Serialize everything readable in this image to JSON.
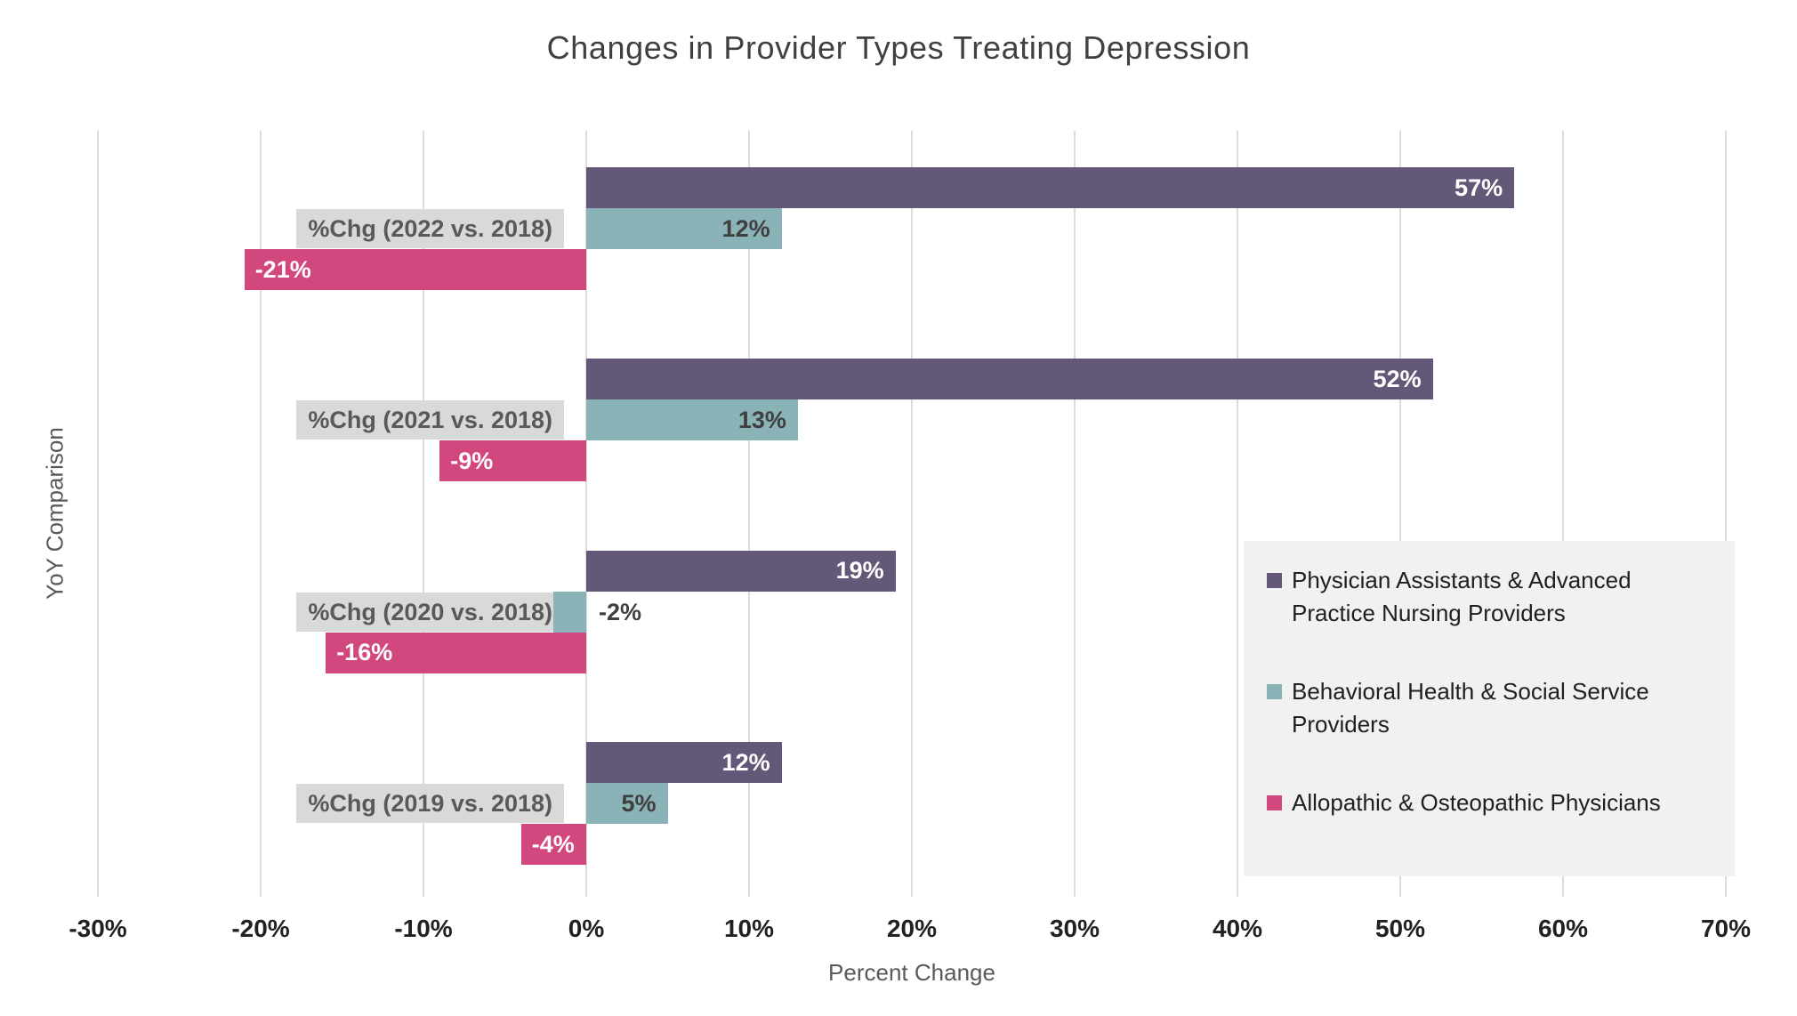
{
  "chart_data": {
    "type": "bar",
    "orientation": "horizontal",
    "title": "Changes in Provider Types Treating Depression",
    "xlabel": "Percent Change",
    "ylabel": "YoY Comparison",
    "xlim": [
      -30,
      70
    ],
    "grid": true,
    "legend_position": "inside-right",
    "x_ticks": [
      {
        "value": -30,
        "label": "-30%"
      },
      {
        "value": -20,
        "label": "-20%"
      },
      {
        "value": -10,
        "label": "-10%"
      },
      {
        "value": 0,
        "label": "0%"
      },
      {
        "value": 10,
        "label": "10%"
      },
      {
        "value": 20,
        "label": "20%"
      },
      {
        "value": 30,
        "label": "30%"
      },
      {
        "value": 40,
        "label": "40%"
      },
      {
        "value": 50,
        "label": "50%"
      },
      {
        "value": 60,
        "label": "60%"
      },
      {
        "value": 70,
        "label": "70%"
      }
    ],
    "categories": [
      {
        "key": "2022",
        "label": "%Chg (2022 vs. 2018)"
      },
      {
        "key": "2021",
        "label": "%Chg (2021 vs. 2018)"
      },
      {
        "key": "2020",
        "label": "%Chg (2020 vs. 2018)"
      },
      {
        "key": "2019",
        "label": "%Chg (2019 vs. 2018)"
      }
    ],
    "series": [
      {
        "key": "physician-assistants-apn",
        "name": "Physician Assistants & Advanced Practice Nursing Providers",
        "color": "#645878",
        "label_color": "#FFFFFF",
        "values": [
          57,
          52,
          19,
          12
        ],
        "labels": [
          "57%",
          "52%",
          "19%",
          "12%"
        ]
      },
      {
        "key": "behavioral-health-ss",
        "name": "Behavioral Health & Social Service Providers",
        "color": "#8AB3B7",
        "label_color": "#3F3F3F",
        "values": [
          12,
          13,
          -2,
          5
        ],
        "labels": [
          "12%",
          "13%",
          "-2%",
          "5%"
        ]
      },
      {
        "key": "allopathic-osteopathic",
        "name": "Allopathic & Osteopathic Physicians",
        "color": "#D2477D",
        "label_color": "#FFFFFF",
        "values": [
          -21,
          -9,
          -16,
          -4
        ],
        "labels": [
          "-21%",
          "-9%",
          "-16%",
          "-4%"
        ]
      }
    ],
    "category_box": {
      "bg": "#D9D9D9",
      "text_color": "#595959"
    },
    "colors": {
      "background": "#FFFFFF",
      "grid": "#DCDCDC",
      "tick_text": "#212121",
      "axis_title_text": "#595959",
      "title_text": "#404040",
      "legend_bg": "#F1F1F1",
      "legend_text": "#1F1F1F"
    }
  }
}
